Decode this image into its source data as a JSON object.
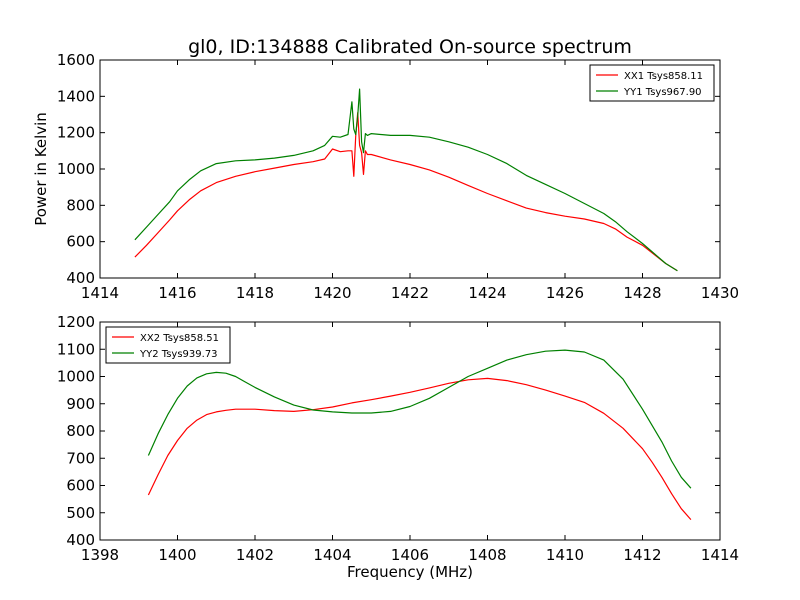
{
  "figure": {
    "title": "gl0, ID:134888 Calibrated On-source spectrum",
    "xlabel": "Frequency (MHz)",
    "ylabel": "Power in Kelvin"
  },
  "colors": {
    "red": "#ff0000",
    "green": "#008000"
  },
  "chart_data": [
    {
      "type": "line",
      "title": "gl0, ID:134888 Calibrated On-source spectrum",
      "xlabel": "",
      "ylabel": "Power in Kelvin",
      "xlim": [
        1414,
        1430
      ],
      "ylim": [
        400,
        1600
      ],
      "xticks": [
        1414,
        1416,
        1418,
        1420,
        1422,
        1424,
        1426,
        1428,
        1430
      ],
      "yticks": [
        400,
        600,
        800,
        1000,
        1200,
        1400,
        1600
      ],
      "grid": false,
      "legend": "top-right",
      "series": [
        {
          "name": "XX1 Tsys858.11",
          "color": "#ff0000",
          "x": [
            1414.9,
            1415.2,
            1415.5,
            1415.8,
            1416.0,
            1416.3,
            1416.6,
            1417.0,
            1417.5,
            1418.0,
            1418.5,
            1419.0,
            1419.5,
            1419.8,
            1420.0,
            1420.2,
            1420.4,
            1420.5,
            1420.55,
            1420.6,
            1420.65,
            1420.7,
            1420.75,
            1420.8,
            1420.85,
            1420.9,
            1421.0,
            1421.5,
            1422.0,
            1422.5,
            1423.0,
            1423.5,
            1424.0,
            1424.5,
            1425.0,
            1425.5,
            1426.0,
            1426.5,
            1427.0,
            1427.3,
            1427.6,
            1428.0,
            1428.3,
            1428.6,
            1428.9
          ],
          "y": [
            515,
            580,
            650,
            720,
            770,
            830,
            880,
            925,
            960,
            985,
            1005,
            1025,
            1040,
            1055,
            1110,
            1095,
            1100,
            1100,
            960,
            1180,
            1310,
            1130,
            1090,
            970,
            1100,
            1080,
            1080,
            1050,
            1025,
            995,
            955,
            910,
            865,
            825,
            785,
            760,
            740,
            725,
            700,
            670,
            625,
            580,
            530,
            480,
            440
          ]
        },
        {
          "name": "YY1 Tsys967.90",
          "color": "#008000",
          "x": [
            1414.9,
            1415.2,
            1415.5,
            1415.8,
            1416.0,
            1416.3,
            1416.6,
            1417.0,
            1417.5,
            1418.0,
            1418.5,
            1419.0,
            1419.5,
            1419.8,
            1420.0,
            1420.2,
            1420.4,
            1420.5,
            1420.55,
            1420.6,
            1420.65,
            1420.7,
            1420.75,
            1420.8,
            1420.85,
            1420.9,
            1421.0,
            1421.5,
            1422.0,
            1422.5,
            1423.0,
            1423.5,
            1424.0,
            1424.5,
            1425.0,
            1425.5,
            1426.0,
            1426.5,
            1427.0,
            1427.3,
            1427.6,
            1428.0,
            1428.3,
            1428.6,
            1428.9
          ],
          "y": [
            610,
            680,
            750,
            820,
            880,
            940,
            990,
            1030,
            1045,
            1050,
            1060,
            1075,
            1100,
            1130,
            1180,
            1175,
            1190,
            1370,
            1220,
            1190,
            1290,
            1440,
            1150,
            1090,
            1195,
            1185,
            1195,
            1185,
            1185,
            1175,
            1150,
            1120,
            1080,
            1030,
            965,
            915,
            865,
            810,
            755,
            710,
            655,
            590,
            535,
            480,
            440
          ]
        }
      ]
    },
    {
      "type": "line",
      "title": "",
      "xlabel": "Frequency (MHz)",
      "ylabel": "",
      "xlim": [
        1398,
        1414
      ],
      "ylim": [
        400,
        1200
      ],
      "xticks": [
        1398,
        1400,
        1402,
        1404,
        1406,
        1408,
        1410,
        1412,
        1414
      ],
      "yticks": [
        400,
        500,
        600,
        700,
        800,
        900,
        1000,
        1100,
        1200
      ],
      "grid": false,
      "legend": "top-left",
      "series": [
        {
          "name": "XX2 Tsys858.51",
          "color": "#ff0000",
          "x": [
            1399.25,
            1399.5,
            1399.75,
            1400.0,
            1400.25,
            1400.5,
            1400.75,
            1401.0,
            1401.25,
            1401.5,
            1401.75,
            1402.0,
            1402.5,
            1403.0,
            1403.5,
            1404.0,
            1404.5,
            1405.0,
            1405.5,
            1406.0,
            1406.5,
            1407.0,
            1407.5,
            1408.0,
            1408.5,
            1409.0,
            1409.5,
            1410.0,
            1410.5,
            1411.0,
            1411.5,
            1412.0,
            1412.25,
            1412.5,
            1412.75,
            1413.0,
            1413.25
          ],
          "y": [
            565,
            640,
            710,
            765,
            810,
            840,
            860,
            870,
            876,
            880,
            880,
            880,
            875,
            872,
            878,
            888,
            903,
            915,
            928,
            942,
            958,
            975,
            988,
            993,
            985,
            970,
            950,
            928,
            905,
            865,
            810,
            735,
            685,
            630,
            570,
            515,
            475
          ]
        },
        {
          "name": "YY2 Tsys939.73",
          "color": "#008000",
          "x": [
            1399.25,
            1399.5,
            1399.75,
            1400.0,
            1400.25,
            1400.5,
            1400.75,
            1401.0,
            1401.25,
            1401.5,
            1401.75,
            1402.0,
            1402.5,
            1403.0,
            1403.5,
            1404.0,
            1404.5,
            1405.0,
            1405.5,
            1406.0,
            1406.5,
            1407.0,
            1407.5,
            1408.0,
            1408.5,
            1409.0,
            1409.5,
            1410.0,
            1410.5,
            1411.0,
            1411.5,
            1412.0,
            1412.25,
            1412.5,
            1412.75,
            1413.0,
            1413.25
          ],
          "y": [
            710,
            790,
            860,
            920,
            965,
            995,
            1010,
            1015,
            1012,
            1000,
            980,
            960,
            925,
            895,
            877,
            870,
            866,
            866,
            872,
            890,
            920,
            960,
            1000,
            1030,
            1060,
            1080,
            1093,
            1097,
            1090,
            1060,
            990,
            880,
            820,
            760,
            690,
            630,
            590
          ]
        }
      ]
    }
  ]
}
